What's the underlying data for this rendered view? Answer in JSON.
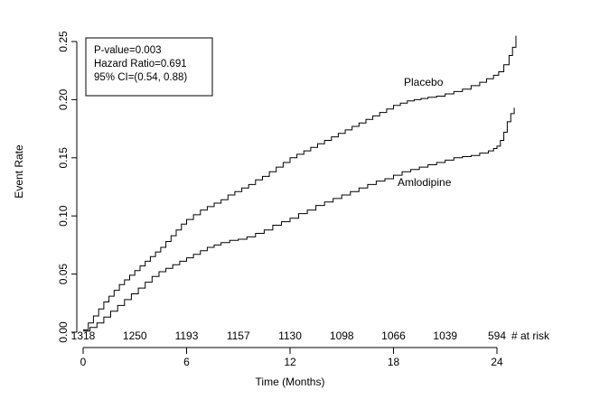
{
  "chart_data": {
    "type": "line",
    "subtype": "kaplan-meier-cumulative-event-rate",
    "title": "",
    "xlabel": "Time (Months)",
    "ylabel": "Event Rate",
    "xlim": [
      0,
      25.5
    ],
    "ylim": [
      0,
      0.25
    ],
    "grid": false,
    "legend_position": "inline-curve-labels",
    "line_color": "#000000",
    "background_color": "#ffffff",
    "x_ticks": {
      "values": [
        0,
        6,
        12,
        18,
        24
      ],
      "labels": [
        "0",
        "6",
        "12",
        "18",
        "24"
      ]
    },
    "y_ticks": {
      "values": [
        0,
        0.05,
        0.1,
        0.15,
        0.2,
        0.25
      ],
      "labels": [
        "0.00",
        "0.05",
        "0.10",
        "0.15",
        "0.20",
        "0.25"
      ]
    },
    "annotation_lines": [
      "P-value=0.003",
      "Hazard Ratio=0.691",
      "95% CI=(0.54, 0.88)"
    ],
    "series": [
      {
        "name": "Placebo",
        "points": [
          [
            0,
            0.002
          ],
          [
            0.3,
            0.008
          ],
          [
            0.6,
            0.014
          ],
          [
            0.9,
            0.02
          ],
          [
            1.2,
            0.026
          ],
          [
            1.5,
            0.031
          ],
          [
            1.8,
            0.036
          ],
          [
            2.1,
            0.041
          ],
          [
            2.4,
            0.045
          ],
          [
            2.7,
            0.049
          ],
          [
            3,
            0.053
          ],
          [
            3.3,
            0.057
          ],
          [
            3.6,
            0.061
          ],
          [
            3.9,
            0.065
          ],
          [
            4.2,
            0.069
          ],
          [
            4.5,
            0.073
          ],
          [
            4.8,
            0.078
          ],
          [
            5.1,
            0.083
          ],
          [
            5.4,
            0.088
          ],
          [
            5.7,
            0.093
          ],
          [
            6,
            0.097
          ],
          [
            6.4,
            0.101
          ],
          [
            6.8,
            0.105
          ],
          [
            7.2,
            0.108
          ],
          [
            7.6,
            0.111
          ],
          [
            8,
            0.114
          ],
          [
            8.4,
            0.118
          ],
          [
            8.8,
            0.121
          ],
          [
            9.2,
            0.124
          ],
          [
            9.6,
            0.127
          ],
          [
            10,
            0.131
          ],
          [
            10.4,
            0.134
          ],
          [
            10.8,
            0.138
          ],
          [
            11.2,
            0.142
          ],
          [
            11.6,
            0.146
          ],
          [
            12,
            0.15
          ],
          [
            12.4,
            0.153
          ],
          [
            12.8,
            0.156
          ],
          [
            13.2,
            0.159
          ],
          [
            13.6,
            0.162
          ],
          [
            14,
            0.165
          ],
          [
            14.4,
            0.168
          ],
          [
            14.8,
            0.171
          ],
          [
            15.2,
            0.174
          ],
          [
            15.6,
            0.177
          ],
          [
            16,
            0.18
          ],
          [
            16.4,
            0.183
          ],
          [
            16.8,
            0.186
          ],
          [
            17.2,
            0.189
          ],
          [
            17.6,
            0.192
          ],
          [
            18,
            0.195
          ],
          [
            18.4,
            0.197
          ],
          [
            18.8,
            0.199
          ],
          [
            19.2,
            0.2
          ],
          [
            19.6,
            0.201
          ],
          [
            20,
            0.202
          ],
          [
            20.5,
            0.203
          ],
          [
            21,
            0.205
          ],
          [
            21.5,
            0.207
          ],
          [
            22,
            0.209
          ],
          [
            22.5,
            0.212
          ],
          [
            23,
            0.215
          ],
          [
            23.4,
            0.218
          ],
          [
            23.8,
            0.221
          ],
          [
            24.1,
            0.224
          ],
          [
            24.4,
            0.23
          ],
          [
            24.7,
            0.238
          ],
          [
            24.9,
            0.245
          ],
          [
            25.1,
            0.255
          ]
        ]
      },
      {
        "name": "Amlodipine",
        "points": [
          [
            0,
            0.001
          ],
          [
            0.4,
            0.004
          ],
          [
            0.8,
            0.008
          ],
          [
            1.2,
            0.013
          ],
          [
            1.6,
            0.018
          ],
          [
            2,
            0.023
          ],
          [
            2.4,
            0.028
          ],
          [
            2.8,
            0.033
          ],
          [
            3.2,
            0.038
          ],
          [
            3.6,
            0.043
          ],
          [
            4,
            0.048
          ],
          [
            4.4,
            0.052
          ],
          [
            4.8,
            0.055
          ],
          [
            5.2,
            0.058
          ],
          [
            5.6,
            0.061
          ],
          [
            6,
            0.064
          ],
          [
            6.4,
            0.067
          ],
          [
            6.8,
            0.07
          ],
          [
            7.2,
            0.073
          ],
          [
            7.6,
            0.075
          ],
          [
            8,
            0.077
          ],
          [
            8.5,
            0.079
          ],
          [
            9,
            0.08
          ],
          [
            9.5,
            0.082
          ],
          [
            10,
            0.085
          ],
          [
            10.5,
            0.088
          ],
          [
            11,
            0.092
          ],
          [
            11.5,
            0.095
          ],
          [
            12,
            0.098
          ],
          [
            12.5,
            0.102
          ],
          [
            13,
            0.105
          ],
          [
            13.5,
            0.109
          ],
          [
            14,
            0.112
          ],
          [
            14.5,
            0.115
          ],
          [
            15,
            0.118
          ],
          [
            15.5,
            0.121
          ],
          [
            16,
            0.124
          ],
          [
            16.5,
            0.127
          ],
          [
            17,
            0.13
          ],
          [
            17.5,
            0.132
          ],
          [
            18,
            0.135
          ],
          [
            18.5,
            0.138
          ],
          [
            19,
            0.14
          ],
          [
            19.5,
            0.142
          ],
          [
            20,
            0.144
          ],
          [
            20.5,
            0.146
          ],
          [
            21,
            0.148
          ],
          [
            21.5,
            0.15
          ],
          [
            22,
            0.151
          ],
          [
            22.5,
            0.152
          ],
          [
            23,
            0.154
          ],
          [
            23.5,
            0.156
          ],
          [
            23.8,
            0.158
          ],
          [
            24,
            0.16
          ],
          [
            24.2,
            0.165
          ],
          [
            24.4,
            0.172
          ],
          [
            24.6,
            0.181
          ],
          [
            24.8,
            0.188
          ],
          [
            25,
            0.193
          ]
        ]
      }
    ],
    "risk_table": {
      "label": "# at risk",
      "months": [
        0,
        3,
        6,
        9,
        12,
        15,
        18,
        21,
        24
      ],
      "values": [
        "1318",
        "1250",
        "1193",
        "1157",
        "1130",
        "1098",
        "1066",
        "1039",
        "594"
      ]
    }
  }
}
